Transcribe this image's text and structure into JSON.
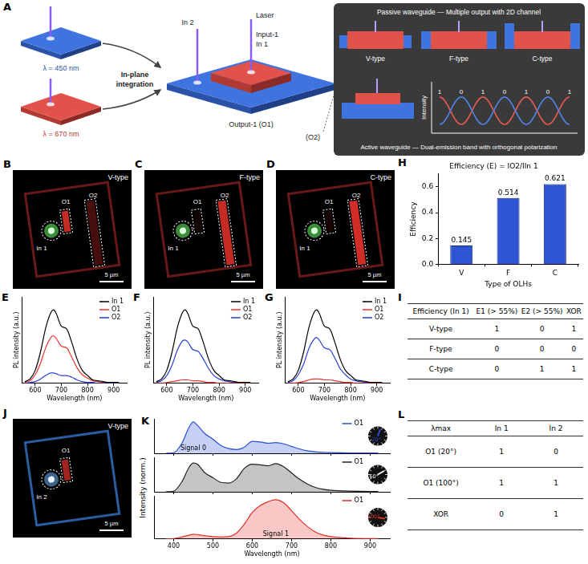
{
  "panel_a": {
    "letter": "A",
    "source_labels": [
      "λ = 450 nm",
      "λ = 670 nm"
    ],
    "arrow_label": "In-plane integration",
    "device_labels": {
      "laser": "Laser",
      "in2": "In 2",
      "input1": "Input-1",
      "in1": "In 1",
      "output1": "Output-1 (O1)",
      "o2": "(O2)"
    },
    "passive": "Passive waveguide — Multiple output with 2D channel",
    "types": [
      "V-type",
      "F-type",
      "C-type"
    ],
    "active": "Active waveguide — Dual-emission band with orthogonal polarization",
    "plot_label": "Intensity",
    "signal_digits": [
      "1",
      "0",
      "1",
      "0",
      "1",
      "0",
      "1"
    ]
  },
  "images": [
    {
      "letter": "B",
      "label": "V-type",
      "input": "In 1",
      "outputs": [
        "O1",
        "O2"
      ],
      "scale_bar": "5 µm"
    },
    {
      "letter": "C",
      "label": "F-type",
      "input": "In 1",
      "outputs": [
        "O1",
        "O2"
      ],
      "scale_bar": "5 µm"
    },
    {
      "letter": "D",
      "label": "C-type",
      "input": "In 1",
      "outputs": [
        "O1",
        "O2"
      ],
      "scale_bar": "5 µm"
    },
    {
      "letter": "J",
      "label": "V-type",
      "input": "In 2",
      "outputs": [
        "O1"
      ],
      "scale_bar": "5 µm"
    }
  ],
  "tables": [
    {
      "letter": "I",
      "header": [
        "Efficiency (In 1)",
        "E1 (> 55%)",
        "E2 (> 55%)",
        "XOR"
      ],
      "rows": [
        [
          "V-type",
          1,
          0,
          1
        ],
        [
          "F-type",
          0,
          0,
          0
        ],
        [
          "C-type",
          0,
          1,
          1
        ]
      ]
    },
    {
      "letter": "L",
      "header": [
        "λmax",
        "In 1",
        "In 2"
      ],
      "rows": [
        [
          "O1 (20°)",
          1,
          0
        ],
        [
          "O1 (100°)",
          1,
          1
        ],
        [
          "XOR",
          0,
          1
        ]
      ]
    }
  ],
  "chart_data": [
    {
      "panel": "E",
      "type": "line",
      "x_label": "Wavelength (nm)",
      "y_label": "PL intensity (a.u.)",
      "x": [
        560,
        580,
        600,
        620,
        640,
        660,
        670,
        680,
        700,
        720,
        740,
        760,
        780,
        800,
        820,
        840,
        860,
        880,
        900,
        920
      ],
      "xlim": [
        550,
        950
      ],
      "xticks": [
        600,
        700,
        800,
        900
      ],
      "ylim": [
        0,
        1
      ],
      "grid": false,
      "legend": "upper right",
      "tick_labels": "x",
      "series": [
        {
          "name": "In 1",
          "color": "#000000",
          "values": [
            0.02,
            0.05,
            0.15,
            0.36,
            0.64,
            0.82,
            0.85,
            0.81,
            0.66,
            0.63,
            0.47,
            0.28,
            0.15,
            0.09,
            0.04,
            0.03,
            0.02,
            0.01,
            0.01,
            0.01
          ]
        },
        {
          "name": "O1",
          "color": "#e8322b",
          "values": [
            0.01,
            0.03,
            0.1,
            0.23,
            0.41,
            0.53,
            0.55,
            0.52,
            0.43,
            0.41,
            0.3,
            0.18,
            0.1,
            0.06,
            0.03,
            0.02,
            0.01,
            0.01,
            0.01,
            0.01
          ]
        },
        {
          "name": "O2",
          "color": "#2b3fd6",
          "values": [
            0.0,
            0.01,
            0.02,
            0.05,
            0.09,
            0.12,
            0.12,
            0.11,
            0.09,
            0.09,
            0.07,
            0.04,
            0.02,
            0.01,
            0.01,
            0.0,
            0.0,
            0.0,
            0.0,
            0.0
          ]
        }
      ]
    },
    {
      "panel": "F",
      "type": "line",
      "x_label": "Wavelength (nm)",
      "y_label": "PL intensity (a.u.)",
      "x": [
        560,
        580,
        600,
        620,
        640,
        660,
        670,
        680,
        700,
        720,
        740,
        760,
        780,
        800,
        820,
        840,
        860,
        880,
        900,
        920
      ],
      "xlim": [
        550,
        950
      ],
      "xticks": [
        600,
        700,
        800,
        900
      ],
      "ylim": [
        0,
        1
      ],
      "grid": false,
      "legend": "upper right",
      "tick_labels": "x",
      "series": [
        {
          "name": "In 1",
          "color": "#000000",
          "values": [
            0.02,
            0.05,
            0.15,
            0.36,
            0.64,
            0.82,
            0.85,
            0.81,
            0.66,
            0.63,
            0.47,
            0.28,
            0.15,
            0.09,
            0.04,
            0.03,
            0.02,
            0.01,
            0.01,
            0.01
          ]
        },
        {
          "name": "O1",
          "color": "#e8322b",
          "values": [
            0.0,
            0.0,
            0.01,
            0.02,
            0.03,
            0.04,
            0.04,
            0.04,
            0.03,
            0.03,
            0.02,
            0.01,
            0.01,
            0.0,
            0.0,
            0.0,
            0.0,
            0.0,
            0.0,
            0.0
          ]
        },
        {
          "name": "O2",
          "color": "#2b3fd6",
          "values": [
            0.01,
            0.03,
            0.09,
            0.21,
            0.38,
            0.49,
            0.5,
            0.48,
            0.39,
            0.37,
            0.28,
            0.17,
            0.09,
            0.05,
            0.03,
            0.02,
            0.01,
            0.01,
            0.01,
            0.01
          ]
        }
      ]
    },
    {
      "panel": "G",
      "type": "line",
      "x_label": "Wavelength (nm)",
      "y_label": "PL intensity (a.u.)",
      "x": [
        560,
        580,
        600,
        620,
        640,
        660,
        670,
        680,
        700,
        720,
        740,
        760,
        780,
        800,
        820,
        840,
        860,
        880,
        900,
        920
      ],
      "xlim": [
        550,
        950
      ],
      "xticks": [
        600,
        700,
        800,
        900
      ],
      "ylim": [
        0,
        1
      ],
      "grid": false,
      "legend": "upper right",
      "tick_labels": "x",
      "series": [
        {
          "name": "In 1",
          "color": "#000000",
          "values": [
            0.02,
            0.05,
            0.15,
            0.36,
            0.64,
            0.82,
            0.85,
            0.81,
            0.66,
            0.63,
            0.47,
            0.28,
            0.15,
            0.09,
            0.04,
            0.03,
            0.02,
            0.01,
            0.01,
            0.01
          ]
        },
        {
          "name": "O1",
          "color": "#e8322b",
          "values": [
            0.0,
            0.0,
            0.01,
            0.02,
            0.04,
            0.05,
            0.05,
            0.05,
            0.04,
            0.04,
            0.03,
            0.02,
            0.01,
            0.01,
            0.0,
            0.0,
            0.0,
            0.0,
            0.0,
            0.0
          ]
        },
        {
          "name": "O2",
          "color": "#2b3fd6",
          "values": [
            0.01,
            0.03,
            0.1,
            0.22,
            0.4,
            0.51,
            0.53,
            0.5,
            0.41,
            0.39,
            0.29,
            0.17,
            0.1,
            0.05,
            0.03,
            0.02,
            0.01,
            0.01,
            0.01,
            0.01
          ]
        }
      ]
    },
    {
      "panel": "H",
      "type": "bar",
      "title": "Efficiency (E) = IO2/IIn 1",
      "x_label": "Type of OLHs",
      "y_label": "Efficiency",
      "categories": [
        "V",
        "F",
        "C"
      ],
      "values": [
        0.145,
        0.514,
        0.621
      ],
      "color": "#2f55d4",
      "ylim": [
        0,
        0.7
      ],
      "yticks": [
        {
          "value": 0,
          "label": "0.0"
        },
        0.2,
        0.4,
        0.6
      ],
      "grid": false,
      "data_labels": true
    },
    {
      "panel": "K",
      "type": "line",
      "x_label": "Wavelength (nm)",
      "y_label": "Intensity (norm.)",
      "x": [
        380,
        400,
        420,
        440,
        450,
        460,
        480,
        500,
        520,
        540,
        560,
        580,
        600,
        620,
        640,
        660,
        680,
        700,
        720,
        740,
        760,
        780,
        800,
        850,
        900,
        920
      ],
      "xlim": [
        350,
        950
      ],
      "xticks": [
        400,
        500,
        600,
        700,
        800,
        900
      ],
      "ylim": [
        0,
        1.1
      ],
      "grid": false,
      "legend": "upper right",
      "tick_labels": "x",
      "series": [
        {
          "name": "O1",
          "color": "#2b50d6",
          "annotation": "Signal 0",
          "angle": 20,
          "angle_label": "20°",
          "values": [
            0.0,
            0.02,
            0.3,
            0.85,
            1.0,
            0.9,
            0.62,
            0.45,
            0.25,
            0.15,
            0.12,
            0.2,
            0.38,
            0.36,
            0.32,
            0.34,
            0.3,
            0.22,
            0.14,
            0.08,
            0.05,
            0.03,
            0.02,
            0.01,
            0.01,
            0.01
          ]
        },
        {
          "name": "O1",
          "color": "#222222",
          "angle": 60,
          "angle_label": "60°",
          "values": [
            0.0,
            0.02,
            0.3,
            0.8,
            0.92,
            0.88,
            0.6,
            0.45,
            0.3,
            0.28,
            0.42,
            0.75,
            0.88,
            0.86,
            0.83,
            0.9,
            0.8,
            0.6,
            0.4,
            0.25,
            0.14,
            0.08,
            0.05,
            0.02,
            0.01,
            0.01
          ]
        },
        {
          "name": "O1",
          "color": "#e0302a",
          "annotation": "Signal 1",
          "angle": 100,
          "angle_label": "100°",
          "values": [
            0.0,
            0.01,
            0.05,
            0.1,
            0.12,
            0.11,
            0.08,
            0.06,
            0.05,
            0.06,
            0.15,
            0.38,
            0.68,
            0.85,
            0.95,
            1.0,
            0.92,
            0.72,
            0.5,
            0.32,
            0.18,
            0.1,
            0.06,
            0.02,
            0.01,
            0.01
          ]
        }
      ]
    }
  ]
}
